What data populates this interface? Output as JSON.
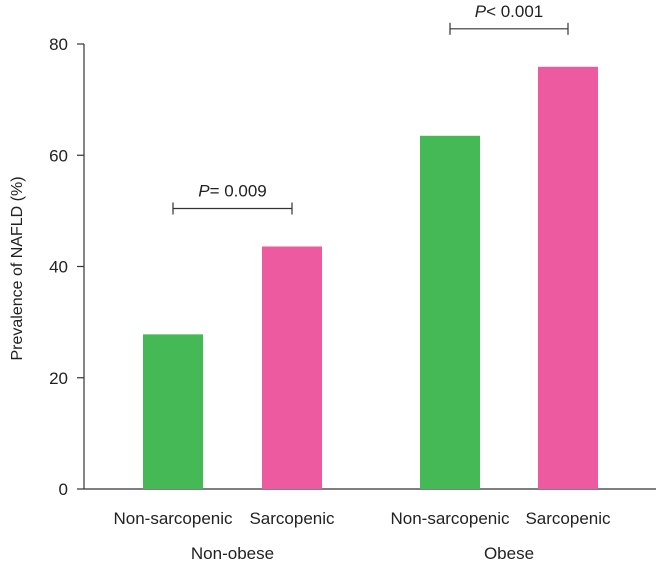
{
  "chart_data": {
    "type": "bar",
    "title": "",
    "ylabel": "Prevalence of NAFLD (%)",
    "xlabel": "",
    "ylim": [
      0,
      80
    ],
    "yticks": [
      0,
      20,
      40,
      60,
      80
    ],
    "grid": false,
    "legend": "none",
    "groups": [
      {
        "name": "Non-obese",
        "categories": [
          "Non-sarcopenic",
          "Sarcopenic"
        ],
        "values": [
          27.8,
          43.6
        ],
        "comparison": {
          "label_italic": "P",
          "label_rest": "= 0.009"
        }
      },
      {
        "name": "Obese",
        "categories": [
          "Non-sarcopenic",
          "Sarcopenic"
        ],
        "values": [
          63.5,
          75.9
        ],
        "comparison": {
          "label_italic": "P",
          "label_rest": "< 0.001"
        }
      }
    ],
    "colors": {
      "Non-sarcopenic": "#45b956",
      "Sarcopenic": "#ee5a9f",
      "axis": "#333333"
    }
  }
}
